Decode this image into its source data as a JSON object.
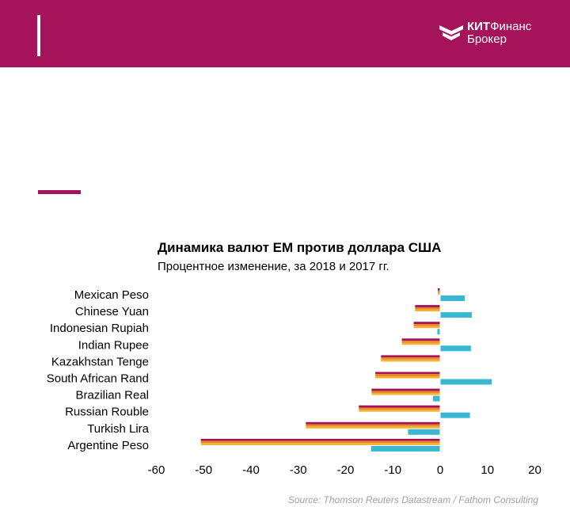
{
  "header": {
    "logo": {
      "brand_bold": "КИТ",
      "brand_regular": "Финанс",
      "brand_line2": "Брокер"
    },
    "colors": {
      "background": "#a5135a",
      "foreground": "#ffffff"
    }
  },
  "chart_data": {
    "type": "bar",
    "orientation": "horizontal",
    "title": "Динамика валют EM против доллара США",
    "subtitle": "Процентное изменение, за 2018 и 2017 гг.",
    "categories": [
      "Mexican Peso",
      "Chinese Yuan",
      "Indonesian Rupiah",
      "Indian Rupee",
      "Kazakhstan Tenge",
      "South African Rand",
      "Brazilian Real",
      "Russian Rouble",
      "Turkish Lira",
      "Argentine Peso"
    ],
    "series": [
      {
        "values": [
          -0.5,
          -5.3,
          -5.6,
          -8.1,
          -12.5,
          -13.7,
          -14.5,
          -17.2,
          -28.4,
          -50.6
        ],
        "color": "#e8862a",
        "style": "gradient-stripes",
        "colors": [
          "#a5135a",
          "#e8862a",
          "#f2b233"
        ]
      },
      {
        "values": [
          5.2,
          6.7,
          -0.6,
          6.5,
          0,
          10.9,
          -1.5,
          6.3,
          -6.8,
          -14.6
        ],
        "color": "#3ab8d1"
      }
    ],
    "xlim": [
      -60,
      20
    ],
    "xticks": [
      -60,
      -50,
      -40,
      -30,
      -20,
      -10,
      0,
      10,
      20
    ],
    "grid": false
  },
  "source": "Source: Thomson Reuters Datastream / Fathom Consulting"
}
